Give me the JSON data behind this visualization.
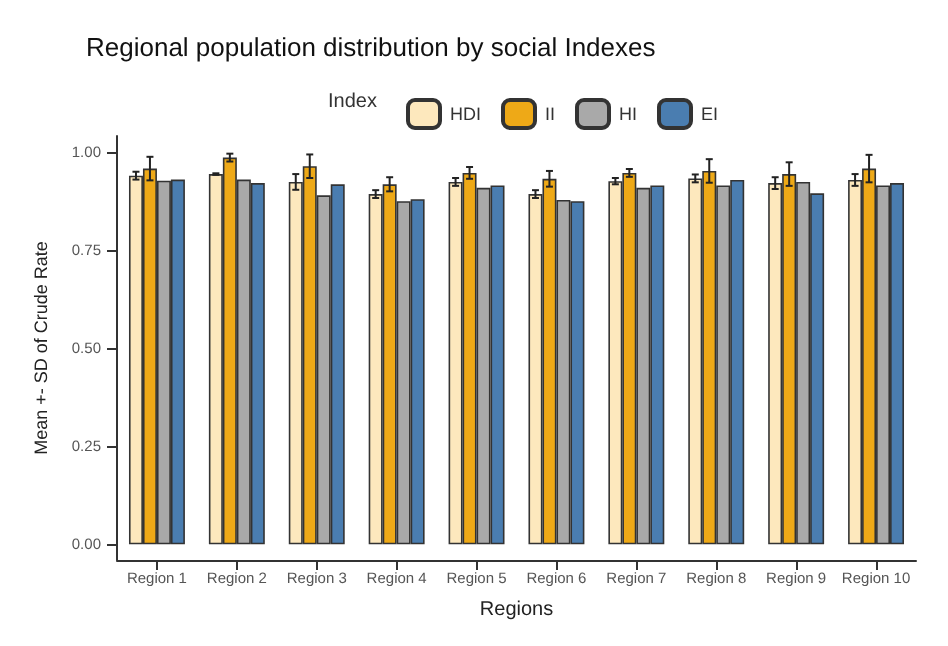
{
  "chart_data": {
    "type": "bar",
    "title": "Regional population distribution by social Indexes",
    "xlabel": "Regions",
    "ylabel": "Mean +- SD of Crude Rate",
    "legend_title": "Index",
    "categories": [
      "Region 1",
      "Region 2",
      "Region 3",
      "Region 4",
      "Region 5",
      "Region 6",
      "Region 7",
      "Region 8",
      "Region 9",
      "Region 10"
    ],
    "series": [
      {
        "name": "HDI",
        "color": "#fde8bd",
        "values": [
          0.939,
          0.943,
          0.923,
          0.892,
          0.923,
          0.892,
          0.925,
          0.932,
          0.92,
          0.928
        ],
        "errors": [
          0.01,
          0.002,
          0.02,
          0.01,
          0.01,
          0.01,
          0.008,
          0.01,
          0.015,
          0.015
        ]
      },
      {
        "name": "II",
        "color": "#eea917",
        "values": [
          0.957,
          0.985,
          0.963,
          0.917,
          0.946,
          0.931,
          0.946,
          0.951,
          0.943,
          0.957
        ],
        "errors": [
          0.03,
          0.01,
          0.03,
          0.018,
          0.015,
          0.02,
          0.01,
          0.03,
          0.03,
          0.035
        ]
      },
      {
        "name": "HI",
        "color": "#a9a9a9",
        "values": [
          0.926,
          0.929,
          0.889,
          0.874,
          0.908,
          0.877,
          0.908,
          0.914,
          0.923,
          0.914
        ]
      },
      {
        "name": "EI",
        "color": "#4a7db0",
        "values": [
          0.929,
          0.92,
          0.917,
          0.879,
          0.914,
          0.874,
          0.914,
          0.928,
          0.894,
          0.92
        ]
      }
    ],
    "ylim": [
      -0.04,
      1.04
    ],
    "yticks": [
      {
        "value": 0,
        "label": "0.00"
      },
      {
        "value": 0.25,
        "label": "0.25"
      },
      {
        "value": 0.5,
        "label": "0.50"
      },
      {
        "value": 0.75,
        "label": "0.75"
      },
      {
        "value": 1,
        "label": "1.00"
      }
    ],
    "grid": false,
    "legend": "top"
  }
}
